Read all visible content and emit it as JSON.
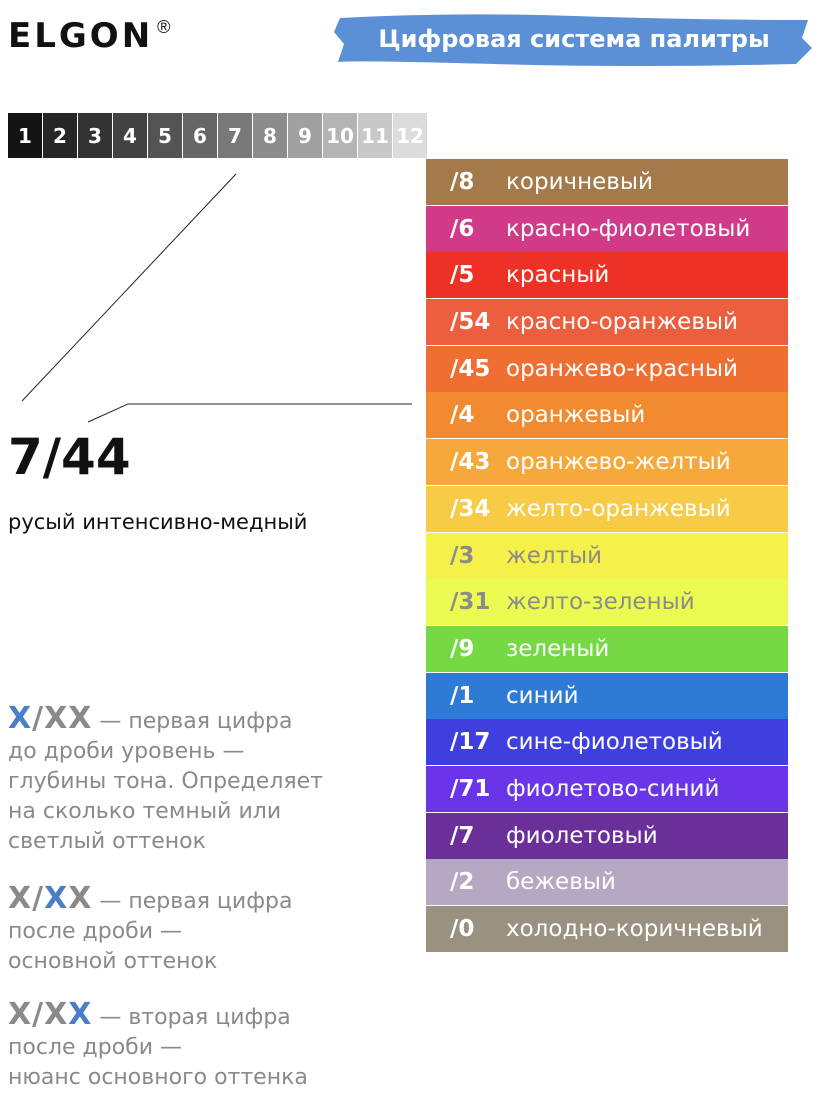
{
  "header": {
    "logo_text": "ELGON",
    "logo_reg": "®",
    "banner_title": "Цифровая система палитры",
    "banner_color": "#5b8fd6"
  },
  "depth_scale": [
    {
      "label": "1",
      "color": "#141414"
    },
    {
      "label": "2",
      "color": "#262626"
    },
    {
      "label": "3",
      "color": "#333333"
    },
    {
      "label": "4",
      "color": "#424242"
    },
    {
      "label": "5",
      "color": "#545454"
    },
    {
      "label": "6",
      "color": "#666666"
    },
    {
      "label": "7",
      "color": "#787878"
    },
    {
      "label": "8",
      "color": "#8c8c8c"
    },
    {
      "label": "9",
      "color": "#a0a0a0"
    },
    {
      "label": "10",
      "color": "#b4b4b4"
    },
    {
      "label": "11",
      "color": "#c8c8c8"
    },
    {
      "label": "12",
      "color": "#dcdcdc"
    }
  ],
  "example": {
    "code": "7/44",
    "description": "русый интенсивно-медный"
  },
  "palette": [
    {
      "code": "/8",
      "name": "коричневый",
      "color": "#a47a4a",
      "text": "light"
    },
    {
      "code": "/6",
      "name": "красно-фиолетовый",
      "color": "#d03a88",
      "text": "light"
    },
    {
      "code": "/5",
      "name": "красный",
      "color": "#ee3125",
      "text": "light"
    },
    {
      "code": "/54",
      "name": "красно-оранжевый",
      "color": "#ec5e3e",
      "text": "light"
    },
    {
      "code": "/45",
      "name": "оранжево-красный",
      "color": "#ef6f33",
      "text": "light"
    },
    {
      "code": "/4",
      "name": "оранжевый",
      "color": "#f28a30",
      "text": "light"
    },
    {
      "code": "/43",
      "name": "оранжево-желтый",
      "color": "#f6a83a",
      "text": "light"
    },
    {
      "code": "/34",
      "name": "желто-оранжевый",
      "color": "#f7cb45",
      "text": "light"
    },
    {
      "code": "/3",
      "name": "желтый",
      "color": "#f6f04a",
      "text": "dark"
    },
    {
      "code": "/31",
      "name": "желто-зеленый",
      "color": "#ecfb52",
      "text": "dark"
    },
    {
      "code": "/9",
      "name": "зеленый",
      "color": "#74d942",
      "text": "light"
    },
    {
      "code": "/1",
      "name": "синий",
      "color": "#2e7bd6",
      "text": "light"
    },
    {
      "code": "/17",
      "name": "сине-фиолетовый",
      "color": "#3f3fe0",
      "text": "light"
    },
    {
      "code": "/71",
      "name": "фиолетово-синий",
      "color": "#6a35e8",
      "text": "light"
    },
    {
      "code": "/7",
      "name": "фиолетовый",
      "color": "#6a2f98",
      "text": "light"
    },
    {
      "code": "/2",
      "name": "бежевый",
      "color": "#b6a8c2",
      "text": "light"
    },
    {
      "code": "/0",
      "name": "холодно-коричневый",
      "color": "#9a9180",
      "text": "light"
    }
  ],
  "legend": [
    {
      "formula": [
        {
          "t": "X",
          "hl": true
        },
        {
          "t": "/",
          "hl": false
        },
        {
          "t": "XX",
          "hl": false
        }
      ],
      "lines": [
        "— первая цифра",
        "до дроби уровень  —",
        "глубины тона. Определяет",
        "на сколько темный или",
        "светлый оттенок"
      ]
    },
    {
      "formula": [
        {
          "t": "X/",
          "hl": false
        },
        {
          "t": "X",
          "hl": true
        },
        {
          "t": "X",
          "hl": false
        }
      ],
      "lines": [
        "— первая цифра",
        "после дроби  —",
        "основной оттенок"
      ]
    },
    {
      "formula": [
        {
          "t": "X/X",
          "hl": false
        },
        {
          "t": "X",
          "hl": true
        }
      ],
      "lines": [
        "— вторая цифра",
        "после дроби —",
        "нюанс основного оттенка"
      ]
    }
  ]
}
